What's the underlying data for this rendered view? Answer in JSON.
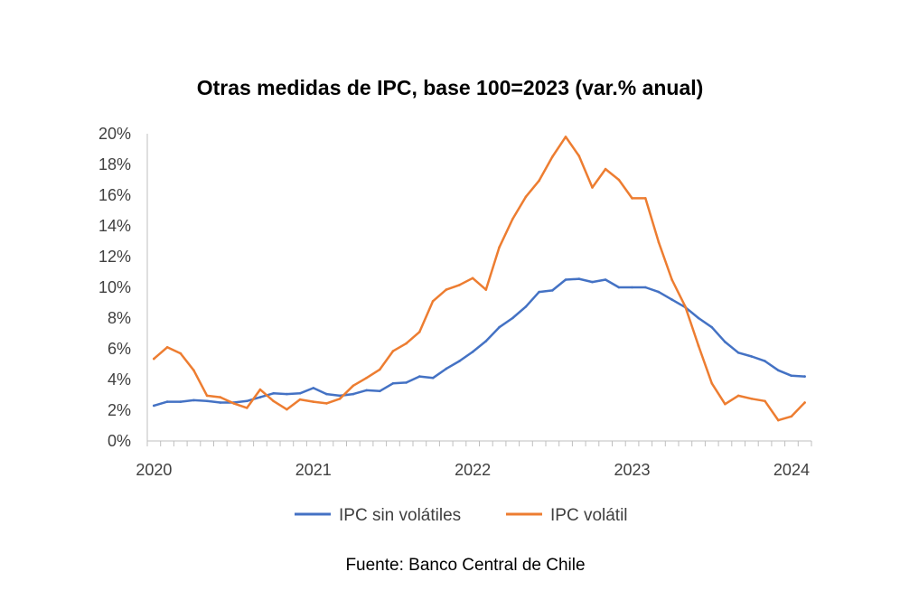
{
  "chart_data": {
    "type": "line",
    "title": "Otras medidas de IPC, base 100=2023 (var.% anual)",
    "source": "Fuente: Banco Central de Chile",
    "xlabel": "",
    "ylabel": "",
    "ylim": [
      0,
      20
    ],
    "y_ticks": [
      0,
      2,
      4,
      6,
      8,
      10,
      12,
      14,
      16,
      18,
      20
    ],
    "y_tick_labels": [
      "0%",
      "2%",
      "4%",
      "6%",
      "8%",
      "10%",
      "12%",
      "14%",
      "16%",
      "18%",
      "20%"
    ],
    "x_labels": [
      "2020",
      "2021",
      "2022",
      "2023",
      "2024"
    ],
    "x_label_month_index": [
      0,
      12,
      24,
      36,
      48
    ],
    "n_months": 50,
    "grid": false,
    "legend_position": "bottom",
    "series": [
      {
        "name": "IPC sin volátiles",
        "color": "#4472C4",
        "values": [
          2.3,
          2.55,
          2.55,
          2.65,
          2.6,
          2.5,
          2.5,
          2.6,
          2.85,
          3.1,
          3.05,
          3.1,
          3.45,
          3.05,
          2.95,
          3.05,
          3.3,
          3.25,
          3.75,
          3.8,
          4.2,
          4.1,
          4.7,
          5.2,
          5.8,
          6.5,
          7.4,
          8.0,
          8.75,
          9.7,
          9.8,
          10.5,
          10.55,
          10.35,
          10.5,
          10.0,
          10.0,
          10.0,
          9.7,
          9.2,
          8.7,
          8.0,
          7.4,
          6.45,
          5.75,
          5.5,
          5.2,
          4.6,
          4.25,
          4.2
        ]
      },
      {
        "name": "IPC volátil",
        "color": "#ED7D31",
        "values": [
          5.35,
          6.1,
          5.7,
          4.6,
          2.95,
          2.85,
          2.45,
          2.15,
          3.35,
          2.6,
          2.05,
          2.7,
          2.55,
          2.45,
          2.75,
          3.6,
          4.1,
          4.65,
          5.85,
          6.35,
          7.1,
          9.1,
          9.85,
          10.15,
          10.6,
          9.85,
          12.6,
          14.45,
          15.9,
          16.95,
          18.5,
          19.8,
          18.55,
          16.5,
          17.7,
          17.0,
          15.8,
          15.8,
          12.95,
          10.5,
          8.75,
          6.2,
          3.75,
          2.4,
          2.95,
          2.75,
          2.6,
          1.35,
          1.6,
          2.5
        ]
      }
    ]
  }
}
